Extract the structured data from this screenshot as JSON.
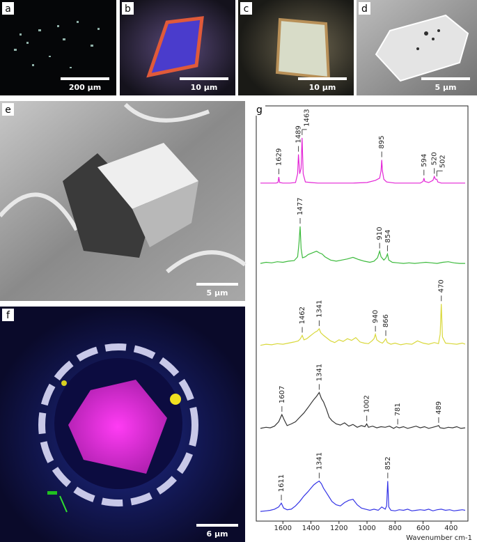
{
  "panels": [
    {
      "label": "a",
      "scale_bar": "200 µm"
    },
    {
      "label": "b",
      "scale_bar": "10 µm"
    },
    {
      "label": "c",
      "scale_bar": "10 µm"
    },
    {
      "label": "d",
      "scale_bar": "5 µm"
    },
    {
      "label": "e",
      "scale_bar": "5 µm"
    },
    {
      "label": "f",
      "scale_bar": "6 µm"
    }
  ],
  "chart_data": {
    "type": "line",
    "panel_label": "g",
    "xlabel": "Wavenumber cm-1",
    "xlim": [
      1790,
      280
    ],
    "xticks": [
      1600,
      1400,
      1200,
      1000,
      800,
      600,
      400
    ],
    "ylim": [
      0,
      100
    ],
    "series": [
      {
        "color": "#e324d6",
        "x": [
          1760,
          1700,
          1650,
          1635,
          1629,
          1623,
          1600,
          1550,
          1510,
          1495,
          1489,
          1480,
          1470,
          1463,
          1455,
          1440,
          1400,
          1350,
          1300,
          1200,
          1100,
          1000,
          940,
          910,
          900,
          895,
          890,
          880,
          860,
          800,
          700,
          620,
          600,
          594,
          588,
          560,
          530,
          520,
          512,
          502,
          495,
          470,
          400,
          350,
          300
        ],
        "values": [
          3,
          3,
          3,
          4,
          14,
          4,
          3,
          3,
          4,
          20,
          55,
          20,
          30,
          85,
          20,
          5,
          4,
          3,
          3,
          3,
          3,
          4,
          8,
          12,
          25,
          45,
          25,
          10,
          5,
          3,
          3,
          3,
          6,
          12,
          6,
          4,
          8,
          15,
          10,
          10,
          5,
          3,
          3,
          3,
          3
        ],
        "peaks": [
          1629,
          1489,
          1463,
          895,
          594,
          520,
          502
        ]
      },
      {
        "color": "#3cba3c",
        "x": [
          1760,
          1720,
          1680,
          1640,
          1600,
          1560,
          1520,
          1495,
          1485,
          1477,
          1470,
          1460,
          1440,
          1420,
          1400,
          1380,
          1360,
          1340,
          1320,
          1300,
          1260,
          1220,
          1180,
          1140,
          1100,
          1060,
          1020,
          980,
          950,
          925,
          910,
          900,
          880,
          865,
          854,
          845,
          820,
          780,
          740,
          700,
          660,
          620,
          580,
          540,
          500,
          460,
          420,
          380,
          340,
          300
        ],
        "values": [
          8,
          10,
          9,
          11,
          10,
          12,
          13,
          20,
          45,
          75,
          35,
          18,
          20,
          24,
          26,
          28,
          30,
          27,
          25,
          20,
          14,
          12,
          14,
          16,
          19,
          15,
          12,
          10,
          12,
          18,
          30,
          20,
          14,
          18,
          25,
          14,
          10,
          9,
          8,
          9,
          8,
          9,
          10,
          9,
          8,
          10,
          11,
          9,
          8,
          8
        ],
        "peaks": [
          1477,
          910,
          854
        ]
      },
      {
        "color": "#d9d83a",
        "x": [
          1760,
          1720,
          1680,
          1640,
          1600,
          1560,
          1520,
          1490,
          1475,
          1462,
          1450,
          1430,
          1410,
          1390,
          1370,
          1355,
          1341,
          1330,
          1310,
          1290,
          1260,
          1230,
          1200,
          1170,
          1140,
          1110,
          1080,
          1050,
          1020,
          990,
          965,
          950,
          940,
          930,
          910,
          890,
          876,
          866,
          855,
          830,
          800,
          760,
          720,
          680,
          640,
          600,
          560,
          520,
          490,
          478,
          470,
          462,
          440,
          400,
          360,
          320,
          300
        ],
        "values": [
          10,
          12,
          11,
          13,
          12,
          14,
          16,
          18,
          22,
          28,
          20,
          22,
          26,
          30,
          34,
          36,
          40,
          33,
          28,
          24,
          18,
          15,
          20,
          17,
          22,
          19,
          24,
          16,
          14,
          13,
          18,
          22,
          30,
          20,
          16,
          14,
          18,
          22,
          15,
          12,
          14,
          11,
          13,
          12,
          18,
          14,
          12,
          15,
          13,
          30,
          85,
          25,
          14,
          13,
          12,
          14,
          12
        ],
        "peaks": [
          1462,
          1341,
          940,
          866,
          470
        ]
      },
      {
        "color": "#333333",
        "x": [
          1760,
          1720,
          1690,
          1660,
          1630,
          1607,
          1590,
          1570,
          1540,
          1510,
          1480,
          1450,
          1420,
          1400,
          1380,
          1360,
          1341,
          1325,
          1310,
          1290,
          1270,
          1250,
          1220,
          1190,
          1160,
          1130,
          1100,
          1070,
          1040,
          1015,
          1002,
          990,
          960,
          930,
          900,
          870,
          840,
          810,
          790,
          781,
          770,
          740,
          710,
          680,
          650,
          620,
          590,
          560,
          530,
          500,
          489,
          478,
          450,
          420,
          390,
          360,
          330,
          300
        ],
        "values": [
          10,
          12,
          11,
          14,
          22,
          35,
          25,
          15,
          18,
          22,
          30,
          38,
          48,
          55,
          62,
          68,
          75,
          64,
          58,
          45,
          30,
          24,
          18,
          16,
          20,
          14,
          17,
          12,
          15,
          13,
          18,
          12,
          14,
          11,
          13,
          12,
          14,
          10,
          13,
          12,
          11,
          13,
          10,
          12,
          14,
          11,
          13,
          10,
          12,
          14,
          15,
          11,
          10,
          12,
          11,
          13,
          10,
          11
        ],
        "peaks": [
          1607,
          1341,
          1002,
          781,
          489
        ]
      },
      {
        "color": "#3434e6",
        "x": [
          1760,
          1720,
          1690,
          1660,
          1630,
          1611,
          1595,
          1570,
          1540,
          1510,
          1480,
          1450,
          1420,
          1400,
          1380,
          1360,
          1341,
          1325,
          1310,
          1290,
          1270,
          1250,
          1220,
          1190,
          1160,
          1130,
          1100,
          1070,
          1040,
          1010,
          980,
          950,
          920,
          895,
          870,
          860,
          852,
          845,
          830,
          800,
          770,
          740,
          710,
          680,
          650,
          620,
          590,
          560,
          530,
          500,
          470,
          440,
          410,
          380,
          350,
          320,
          300
        ],
        "values": [
          10,
          11,
          12,
          14,
          18,
          25,
          16,
          13,
          14,
          20,
          28,
          38,
          46,
          52,
          58,
          62,
          65,
          60,
          52,
          44,
          36,
          28,
          22,
          20,
          26,
          30,
          32,
          22,
          16,
          14,
          12,
          14,
          12,
          18,
          14,
          20,
          65,
          18,
          12,
          11,
          13,
          12,
          14,
          11,
          12,
          13,
          12,
          14,
          11,
          13,
          14,
          12,
          13,
          11,
          12,
          13,
          12
        ],
        "peaks": [
          1611,
          1341,
          852
        ]
      }
    ]
  }
}
